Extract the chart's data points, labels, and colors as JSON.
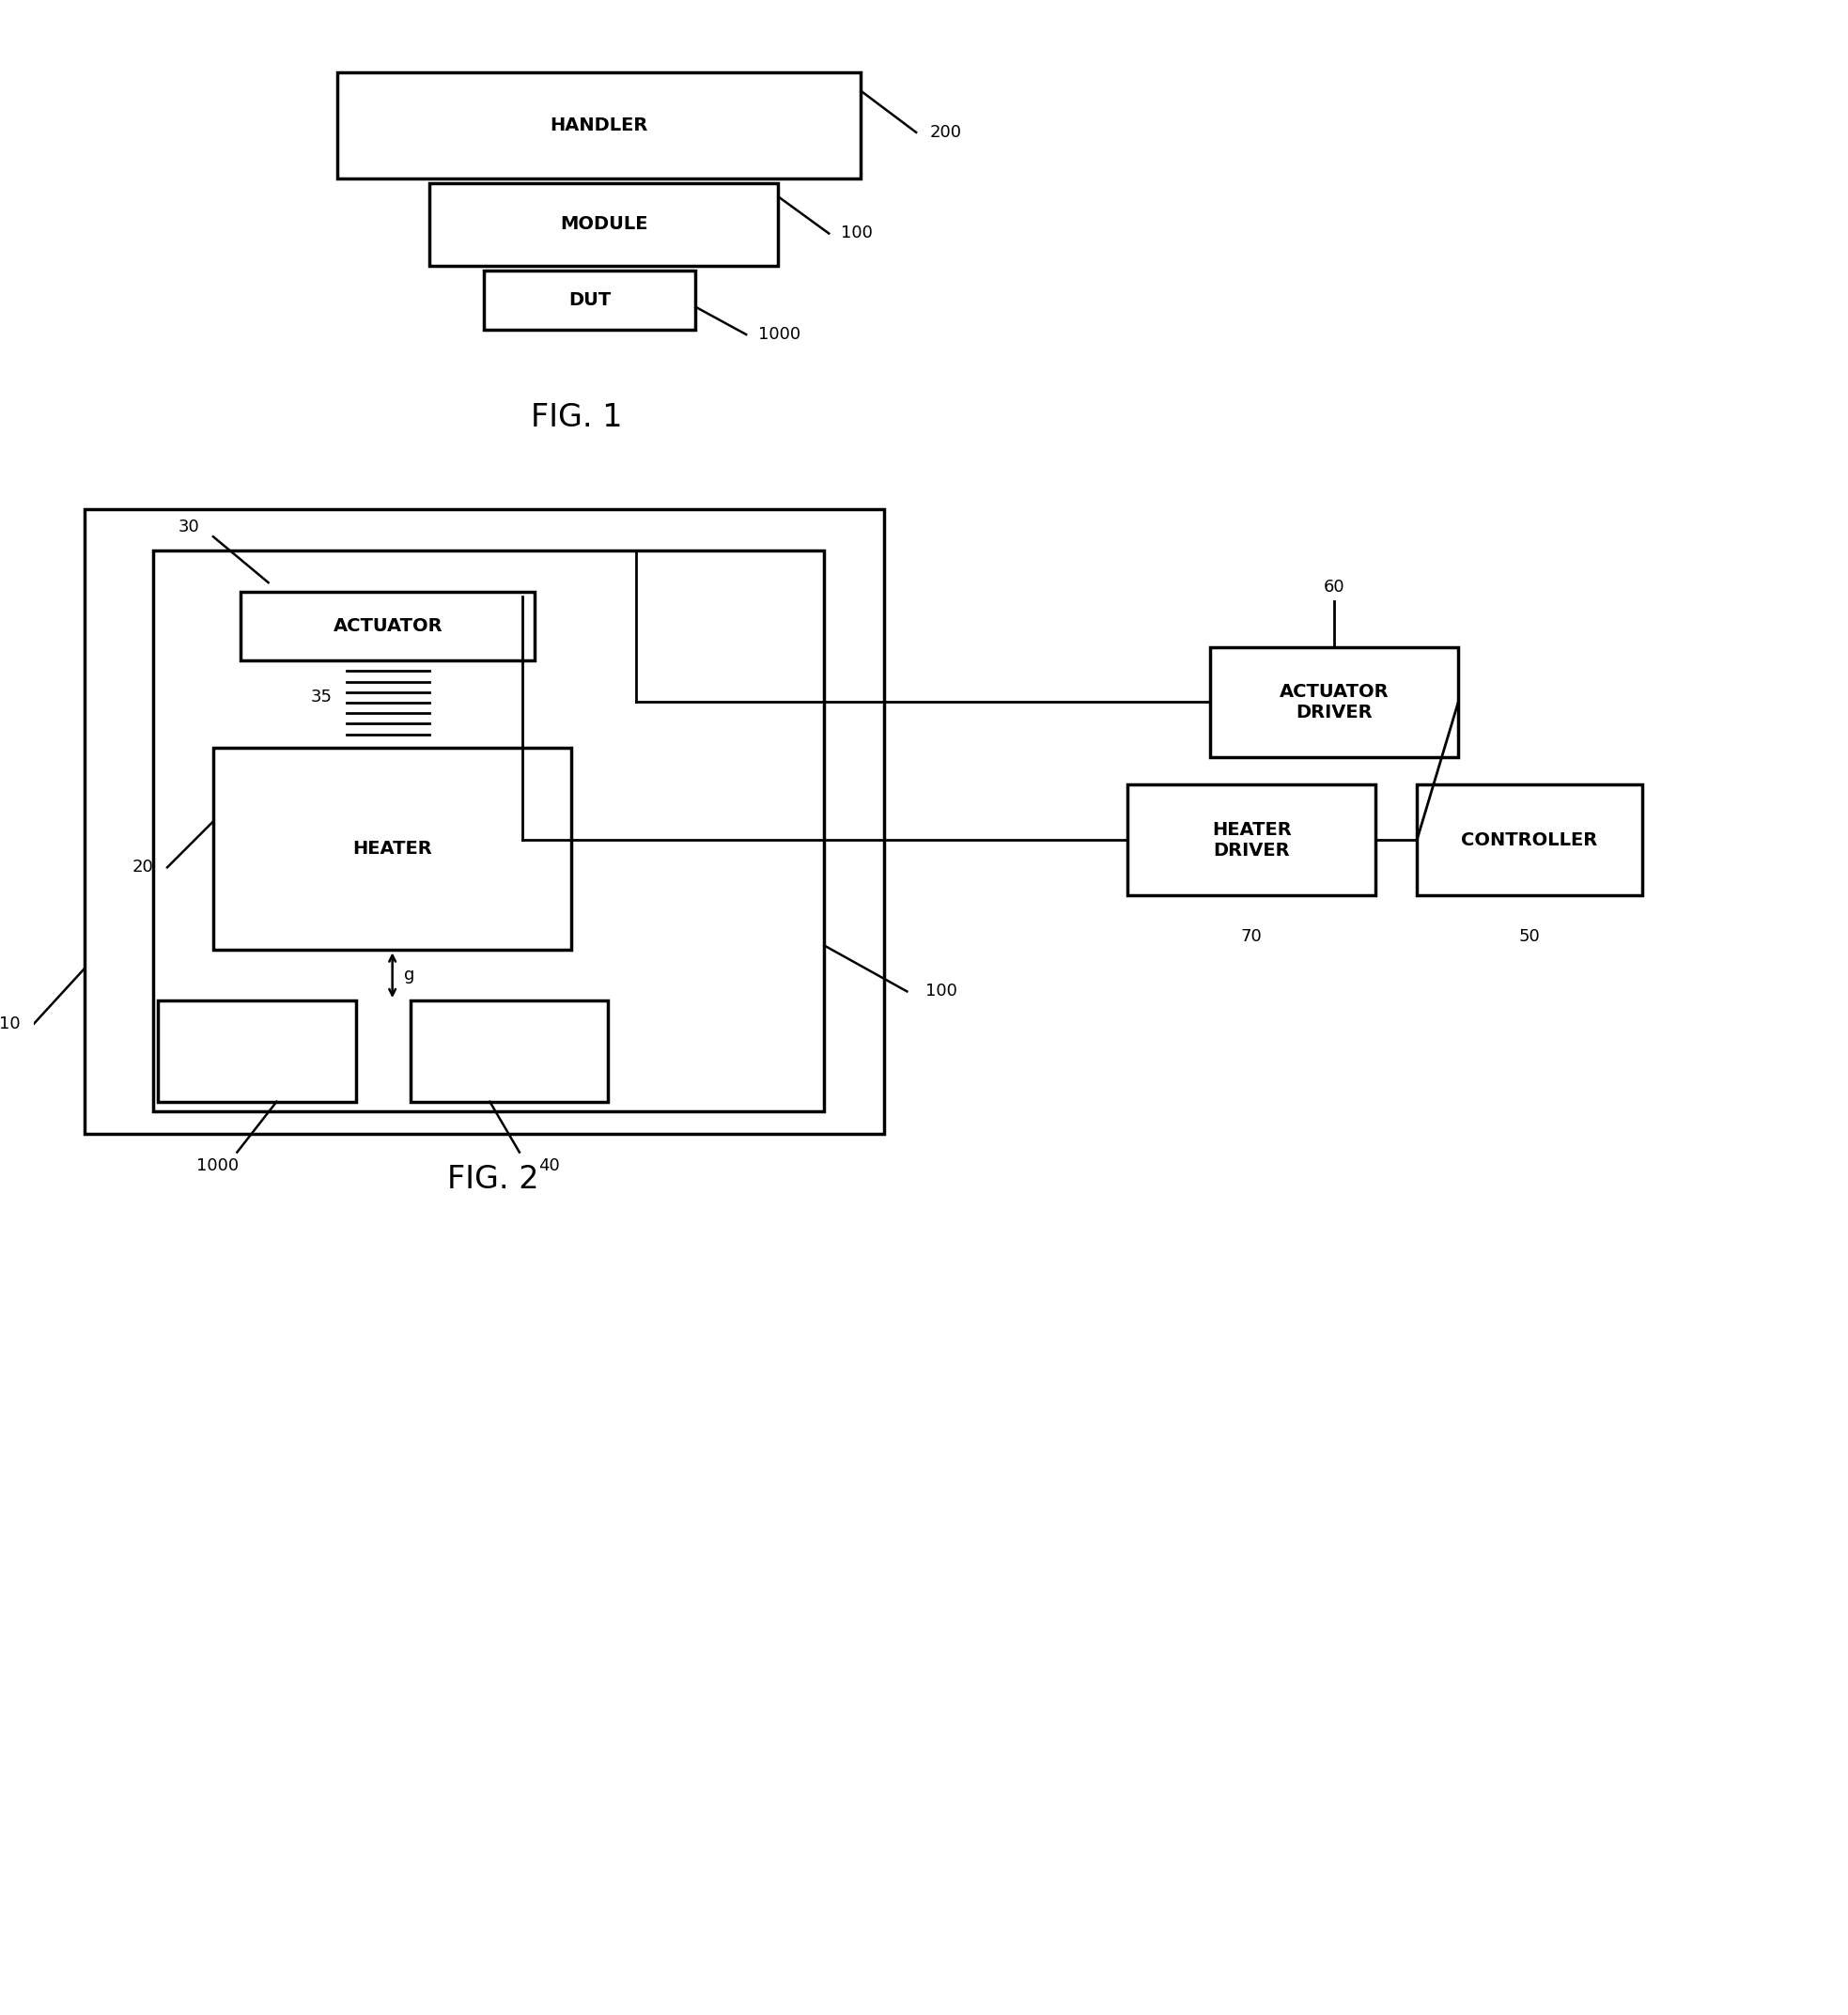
{
  "fig_width": 19.67,
  "fig_height": 21.45,
  "bg_color": "#ffffff",
  "fig1_label": "FIG. 1",
  "fig2_label": "FIG. 2",
  "handler_label": "HANDLER",
  "module_label": "MODULE",
  "dut_label": "DUT",
  "actuator_label": "ACTUATOR",
  "heater_label": "HEATER",
  "actuator_driver_label": "ACTUATOR\nDRIVER",
  "heater_driver_label": "HEATER\nDRIVER",
  "controller_label": "CONTROLLER",
  "ref_200": "200",
  "ref_100_fig1": "100",
  "ref_1000_fig1": "1000",
  "ref_10": "10",
  "ref_20": "20",
  "ref_30": "30",
  "ref_35": "35",
  "ref_40": "40",
  "ref_50": "50",
  "ref_60": "60",
  "ref_70": "70",
  "ref_100_fig2": "100",
  "ref_1000_fig2": "1000",
  "gap_label": "g"
}
